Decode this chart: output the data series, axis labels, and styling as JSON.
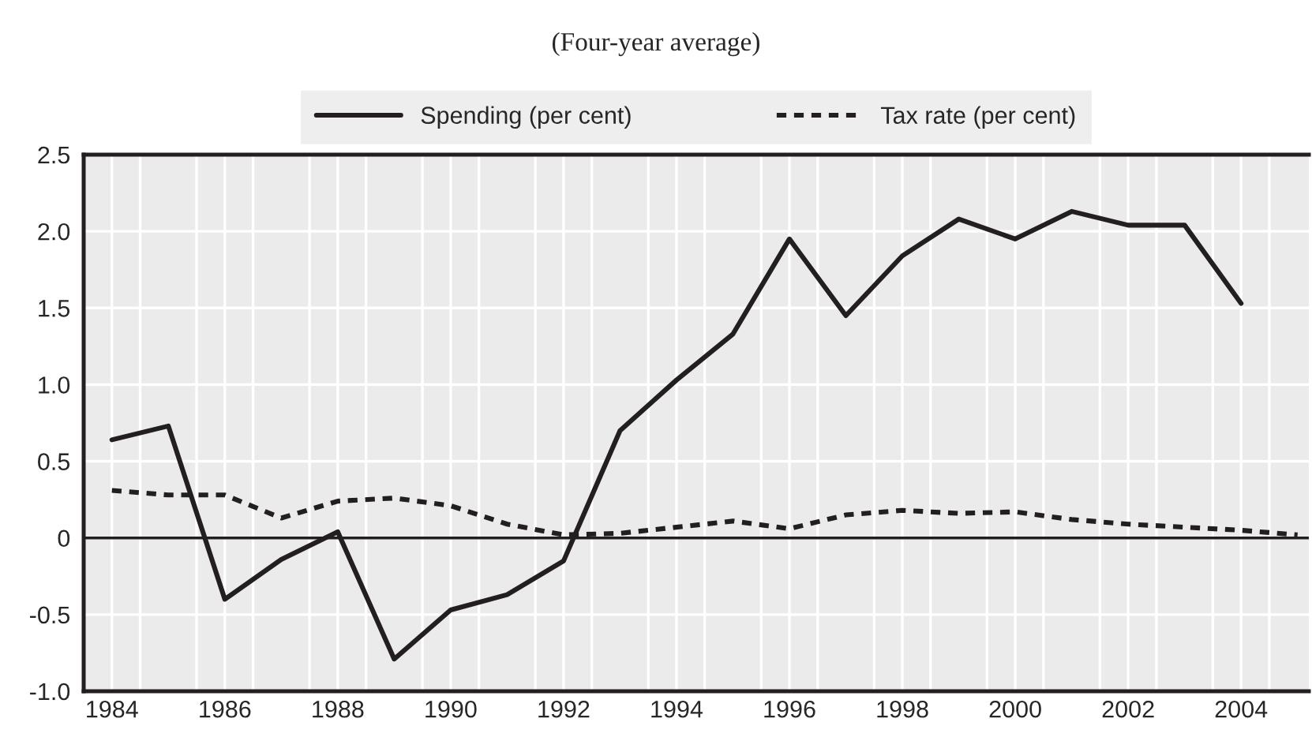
{
  "chart_data": {
    "type": "line",
    "title": "(Four-year average)",
    "x": [
      1984,
      1985,
      1986,
      1987,
      1988,
      1989,
      1990,
      1991,
      1992,
      1993,
      1994,
      1995,
      1996,
      1997,
      1998,
      1999,
      2000,
      2001,
      2002,
      2003,
      2004
    ],
    "series": [
      {
        "name": "Spending (per cent)",
        "color": "#231f20",
        "line_style": "solid",
        "values": [
          0.64,
          0.73,
          -0.4,
          -0.14,
          0.04,
          -0.79,
          -0.47,
          -0.37,
          -0.15,
          0.7,
          1.03,
          1.33,
          1.95,
          1.45,
          1.84,
          2.08,
          1.95,
          2.13,
          2.04,
          2.04,
          1.53
        ]
      },
      {
        "name": "Tax rate (per cent)",
        "color": "#231f20",
        "line_style": "dotted",
        "x": [
          1984,
          1985,
          1986,
          1987,
          1988,
          1989,
          1990,
          1991,
          1992,
          1993,
          1994,
          1995,
          1996,
          1997,
          1998,
          1999,
          2000,
          2001,
          2002,
          2003,
          2004,
          2005
        ],
        "values": [
          0.31,
          0.28,
          0.28,
          0.13,
          0.24,
          0.26,
          0.21,
          0.09,
          0.02,
          0.03,
          0.07,
          0.11,
          0.06,
          0.15,
          0.18,
          0.16,
          0.17,
          0.12,
          0.09,
          0.07,
          0.05,
          0.02
        ]
      }
    ],
    "xlim": [
      1983.5,
      2005.2
    ],
    "xticks": [
      1984,
      1986,
      1988,
      1990,
      1992,
      1994,
      1996,
      1998,
      2000,
      2002,
      2004,
      {
        "value": 1984.5,
        "label": null
      },
      {
        "value": 1985.5,
        "label": null
      },
      {
        "value": 1986.5,
        "label": null
      },
      {
        "value": 1987.5,
        "label": null
      },
      {
        "value": 1988.5,
        "label": null
      },
      {
        "value": 1989.5,
        "label": null
      },
      {
        "value": 1990.5,
        "label": null
      },
      {
        "value": 1991.5,
        "label": null
      },
      {
        "value": 1992.5,
        "label": null
      },
      {
        "value": 1993.5,
        "label": null
      },
      {
        "value": 1994.5,
        "label": null
      },
      {
        "value": 1995.5,
        "label": null
      },
      {
        "value": 1996.5,
        "label": null
      },
      {
        "value": 1997.5,
        "label": null
      },
      {
        "value": 1998.5,
        "label": null
      },
      {
        "value": 1999.5,
        "label": null
      },
      {
        "value": 2000.5,
        "label": null
      },
      {
        "value": 2001.5,
        "label": null
      },
      {
        "value": 2002.5,
        "label": null
      },
      {
        "value": 2003.5,
        "label": null
      },
      {
        "value": 2004.5,
        "label": null
      }
    ],
    "ylim": [
      -1.0,
      2.5
    ],
    "yticks": [
      {
        "value": -1,
        "label": "-1.0"
      },
      -0.5,
      0,
      0.5,
      {
        "value": 1,
        "label": "1.0"
      },
      1.5,
      {
        "value": 2,
        "label": "2.0"
      },
      2.5
    ],
    "ref_lines": [
      {
        "axis": "y",
        "value": 0,
        "color": "#231f20"
      }
    ],
    "grid": true,
    "legend": "top",
    "marker": "none"
  }
}
